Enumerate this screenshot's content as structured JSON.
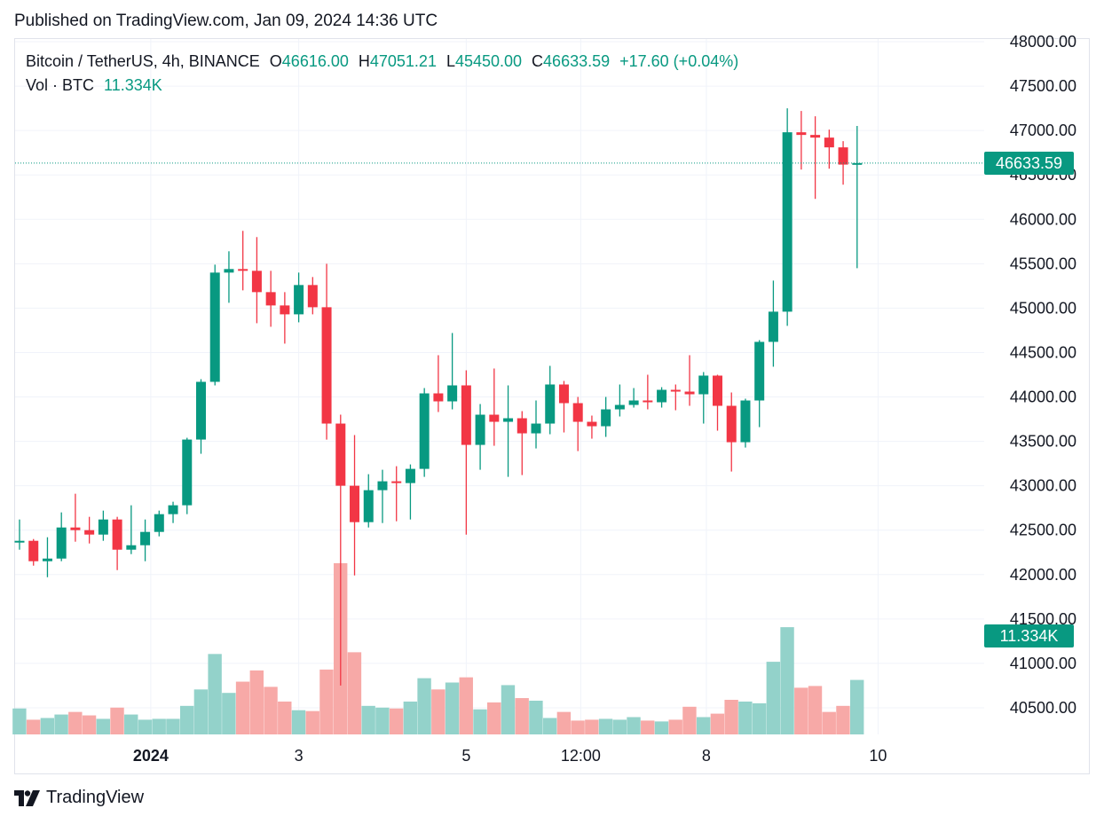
{
  "header": {
    "published": "Published on TradingView.com, Jan 09, 2024 14:36 UTC"
  },
  "legend": {
    "symbol": "Bitcoin / TetherUS, 4h, BINANCE",
    "open_label": "O",
    "open": "46616.00",
    "high_label": "H",
    "high": "47051.21",
    "low_label": "L",
    "low": "45450.00",
    "close_label": "C",
    "close": "46633.59",
    "change": "+17.60 (+0.04%)",
    "volume_label": "Vol · BTC",
    "volume": "11.334K"
  },
  "badges": {
    "last_price": "46633.59",
    "last_volume": "11.334K"
  },
  "footer": {
    "brand": "TradingView"
  },
  "colors": {
    "up": "#089981",
    "down": "#f23645",
    "up_volume": "#93d2ca",
    "down_volume": "#f7a9a7",
    "grid": "#f0f3fa"
  },
  "chart_data": {
    "type": "candlestick",
    "title": "Bitcoin / TetherUS, 4h, BINANCE",
    "y_ticks": [
      "48000.00",
      "47500.00",
      "47000.00",
      "46500.00",
      "46000.00",
      "45500.00",
      "45000.00",
      "44500.00",
      "44000.00",
      "43500.00",
      "43000.00",
      "42500.00",
      "42000.00",
      "41500.00",
      "41000.00",
      "40500.00"
    ],
    "y_range": [
      40100,
      48000
    ],
    "x_ticks": [
      {
        "label": "2024",
        "bar": 9.4,
        "bold": true
      },
      {
        "label": "3",
        "bar": 20,
        "bold": false
      },
      {
        "label": "5",
        "bar": 32,
        "bold": false
      },
      {
        "label": "12:00",
        "bar": 40.2,
        "bold": false
      },
      {
        "label": "8",
        "bar": 49.2,
        "bold": false
      },
      {
        "label": "10",
        "bar": 61.5,
        "bold": false
      }
    ],
    "last_price": 46633.59,
    "last_volume": 11334,
    "candles": [
      {
        "o": 42380,
        "h": 42620,
        "l": 42280,
        "c": 42380,
        "v": 3.0
      },
      {
        "o": 42380,
        "h": 42400,
        "l": 42100,
        "c": 42150,
        "v": 1.7
      },
      {
        "o": 42150,
        "h": 42420,
        "l": 41970,
        "c": 42180,
        "v": 1.9
      },
      {
        "o": 42180,
        "h": 42700,
        "l": 42150,
        "c": 42530,
        "v": 2.3
      },
      {
        "o": 42530,
        "h": 42910,
        "l": 42370,
        "c": 42500,
        "v": 2.6
      },
      {
        "o": 42500,
        "h": 42650,
        "l": 42350,
        "c": 42450,
        "v": 2.2
      },
      {
        "o": 42450,
        "h": 42720,
        "l": 42380,
        "c": 42620,
        "v": 1.8
      },
      {
        "o": 42620,
        "h": 42650,
        "l": 42050,
        "c": 42280,
        "v": 3.1
      },
      {
        "o": 42280,
        "h": 42780,
        "l": 42230,
        "c": 42330,
        "v": 2.3
      },
      {
        "o": 42330,
        "h": 42620,
        "l": 42150,
        "c": 42480,
        "v": 1.7
      },
      {
        "o": 42480,
        "h": 42720,
        "l": 42430,
        "c": 42680,
        "v": 1.8
      },
      {
        "o": 42680,
        "h": 42820,
        "l": 42580,
        "c": 42780,
        "v": 1.8
      },
      {
        "o": 42780,
        "h": 43540,
        "l": 42680,
        "c": 43520,
        "v": 3.3
      },
      {
        "o": 43520,
        "h": 44200,
        "l": 43360,
        "c": 44170,
        "v": 5.2
      },
      {
        "o": 44170,
        "h": 45490,
        "l": 44130,
        "c": 45400,
        "v": 9.3
      },
      {
        "o": 45400,
        "h": 45640,
        "l": 45060,
        "c": 45440,
        "v": 4.8
      },
      {
        "o": 45440,
        "h": 45870,
        "l": 45200,
        "c": 45420,
        "v": 6.1
      },
      {
        "o": 45420,
        "h": 45800,
        "l": 44830,
        "c": 45180,
        "v": 7.4
      },
      {
        "o": 45180,
        "h": 45420,
        "l": 44790,
        "c": 45030,
        "v": 5.5
      },
      {
        "o": 45030,
        "h": 45180,
        "l": 44600,
        "c": 44930,
        "v": 3.8
      },
      {
        "o": 44930,
        "h": 45400,
        "l": 44840,
        "c": 45260,
        "v": 2.8
      },
      {
        "o": 45260,
        "h": 45350,
        "l": 44930,
        "c": 45010,
        "v": 2.7
      },
      {
        "o": 45010,
        "h": 45500,
        "l": 43520,
        "c": 43700,
        "v": 7.5
      },
      {
        "o": 43700,
        "h": 43800,
        "l": 40750,
        "c": 43000,
        "v": 19.8
      },
      {
        "o": 43000,
        "h": 43570,
        "l": 41990,
        "c": 42590,
        "v": 9.5
      },
      {
        "o": 42590,
        "h": 43130,
        "l": 42530,
        "c": 42950,
        "v": 3.3
      },
      {
        "o": 42950,
        "h": 43180,
        "l": 42580,
        "c": 43050,
        "v": 3.1
      },
      {
        "o": 43050,
        "h": 43220,
        "l": 42600,
        "c": 43030,
        "v": 3.0
      },
      {
        "o": 43030,
        "h": 43240,
        "l": 42620,
        "c": 43190,
        "v": 3.8
      },
      {
        "o": 43190,
        "h": 44100,
        "l": 43100,
        "c": 44040,
        "v": 6.5
      },
      {
        "o": 44040,
        "h": 44470,
        "l": 43830,
        "c": 43950,
        "v": 5.2
      },
      {
        "o": 43950,
        "h": 44720,
        "l": 43860,
        "c": 44130,
        "v": 6.0
      },
      {
        "o": 44130,
        "h": 44300,
        "l": 42450,
        "c": 43460,
        "v": 6.6
      },
      {
        "o": 43460,
        "h": 43920,
        "l": 43180,
        "c": 43800,
        "v": 2.9
      },
      {
        "o": 43800,
        "h": 44320,
        "l": 43450,
        "c": 43720,
        "v": 3.7
      },
      {
        "o": 43720,
        "h": 44130,
        "l": 43100,
        "c": 43760,
        "v": 5.7
      },
      {
        "o": 43760,
        "h": 43840,
        "l": 43120,
        "c": 43590,
        "v": 4.2
      },
      {
        "o": 43590,
        "h": 43960,
        "l": 43420,
        "c": 43700,
        "v": 3.9
      },
      {
        "o": 43700,
        "h": 44350,
        "l": 43580,
        "c": 44140,
        "v": 1.9
      },
      {
        "o": 44140,
        "h": 44180,
        "l": 43600,
        "c": 43930,
        "v": 2.6
      },
      {
        "o": 43930,
        "h": 44000,
        "l": 43390,
        "c": 43720,
        "v": 1.6
      },
      {
        "o": 43720,
        "h": 43790,
        "l": 43530,
        "c": 43670,
        "v": 1.7
      },
      {
        "o": 43670,
        "h": 44000,
        "l": 43550,
        "c": 43860,
        "v": 1.8
      },
      {
        "o": 43860,
        "h": 44140,
        "l": 43780,
        "c": 43910,
        "v": 1.7
      },
      {
        "o": 43910,
        "h": 44100,
        "l": 43880,
        "c": 43960,
        "v": 2.0
      },
      {
        "o": 43960,
        "h": 44250,
        "l": 43860,
        "c": 43940,
        "v": 1.6
      },
      {
        "o": 43940,
        "h": 44110,
        "l": 43880,
        "c": 44080,
        "v": 1.5
      },
      {
        "o": 44080,
        "h": 44140,
        "l": 43850,
        "c": 44060,
        "v": 1.7
      },
      {
        "o": 44060,
        "h": 44470,
        "l": 43900,
        "c": 44030,
        "v": 3.2
      },
      {
        "o": 44030,
        "h": 44280,
        "l": 43700,
        "c": 44240,
        "v": 2.0
      },
      {
        "o": 44240,
        "h": 44250,
        "l": 43620,
        "c": 43900,
        "v": 2.4
      },
      {
        "o": 43900,
        "h": 44050,
        "l": 43160,
        "c": 43490,
        "v": 4.0
      },
      {
        "o": 43490,
        "h": 43980,
        "l": 43430,
        "c": 43960,
        "v": 3.8
      },
      {
        "o": 43960,
        "h": 44640,
        "l": 43660,
        "c": 44620,
        "v": 3.6
      },
      {
        "o": 44620,
        "h": 45310,
        "l": 44340,
        "c": 44960,
        "v": 8.4
      },
      {
        "o": 44960,
        "h": 47250,
        "l": 44800,
        "c": 46980,
        "v": 12.4
      },
      {
        "o": 46980,
        "h": 47220,
        "l": 46560,
        "c": 46950,
        "v": 5.4
      },
      {
        "o": 46950,
        "h": 47160,
        "l": 46230,
        "c": 46920,
        "v": 5.6
      },
      {
        "o": 46920,
        "h": 47010,
        "l": 46570,
        "c": 46810,
        "v": 2.6
      },
      {
        "o": 46810,
        "h": 46880,
        "l": 46390,
        "c": 46616,
        "v": 3.3
      },
      {
        "o": 46616,
        "h": 47051.21,
        "l": 45450,
        "c": 46633.59,
        "v": 6.3
      }
    ]
  }
}
